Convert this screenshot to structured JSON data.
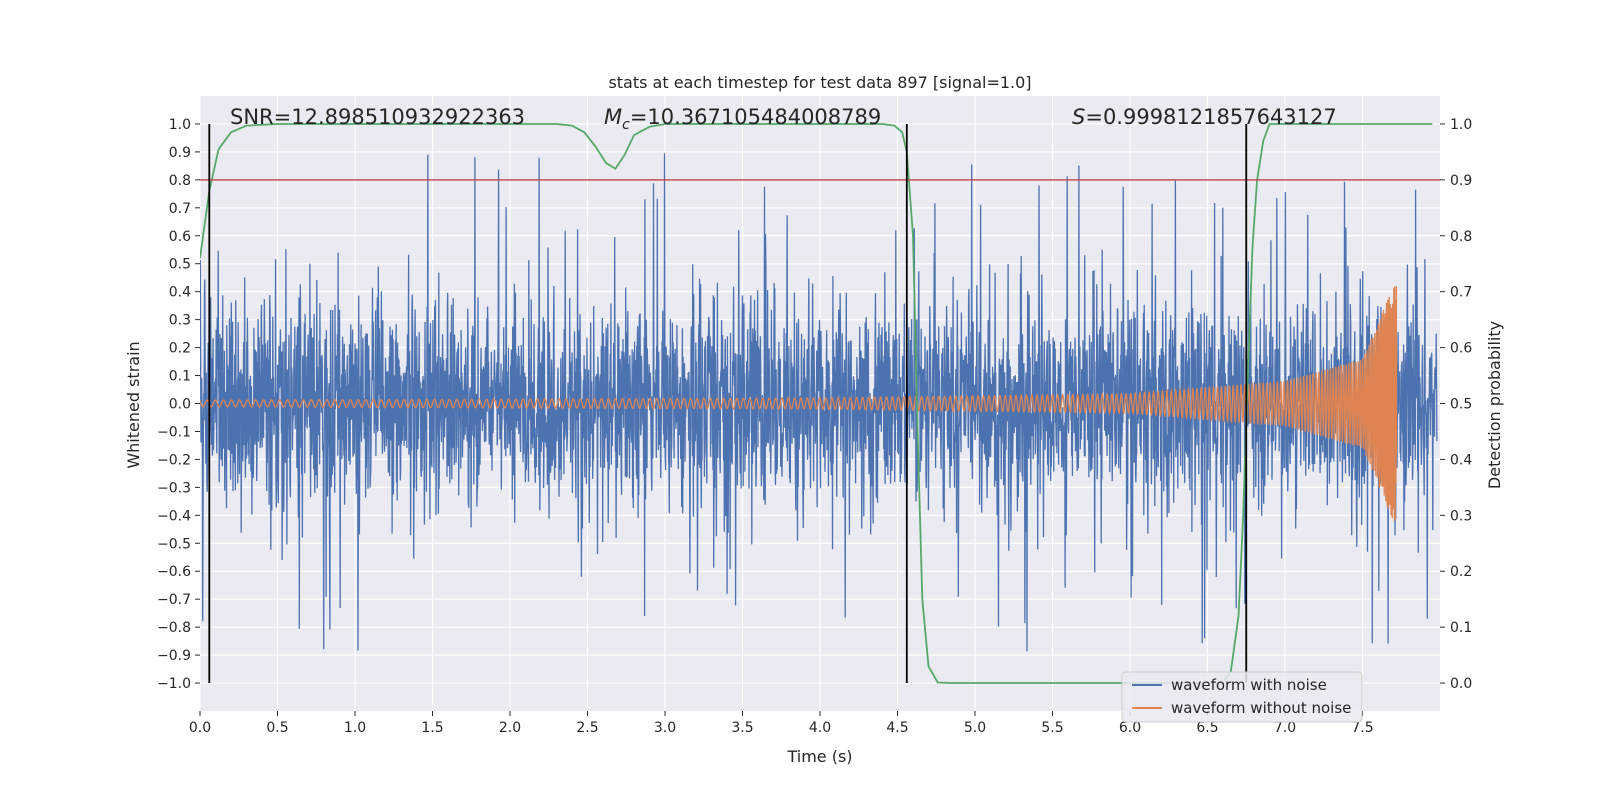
{
  "chart_data": {
    "type": "line",
    "title": "stats at each timestep for test data 897 [signal=1.0]",
    "xlabel": "Time (s)",
    "ylabel": "Whitened strain",
    "y2label": "Detection probability",
    "xlim": [
      0.0,
      8.0
    ],
    "ylim": [
      -1.1,
      1.1
    ],
    "y2lim": [
      -0.05,
      1.05
    ],
    "xticks": [
      0.0,
      0.5,
      1.0,
      1.5,
      2.0,
      2.5,
      3.0,
      3.5,
      4.0,
      4.5,
      5.0,
      5.5,
      6.0,
      6.5,
      7.0,
      7.5
    ],
    "xtick_labels": [
      "0.0",
      "0.5",
      "1.0",
      "1.5",
      "2.0",
      "2.5",
      "3.0",
      "3.5",
      "4.0",
      "4.5",
      "5.0",
      "5.5",
      "6.0",
      "6.5",
      "7.0",
      "7.5"
    ],
    "yticks": [
      -1.0,
      -0.9,
      -0.8,
      -0.7,
      -0.6,
      -0.5,
      -0.4,
      -0.3,
      -0.2,
      -0.1,
      0.0,
      0.1,
      0.2,
      0.3,
      0.4,
      0.5,
      0.6,
      0.7,
      0.8,
      0.9,
      1.0
    ],
    "ytick_labels": [
      "−1.0",
      "−0.9",
      "−0.8",
      "−0.7",
      "−0.6",
      "−0.5",
      "−0.4",
      "−0.3",
      "−0.2",
      "−0.1",
      "0.0",
      "0.1",
      "0.2",
      "0.3",
      "0.4",
      "0.5",
      "0.6",
      "0.7",
      "0.8",
      "0.9",
      "1.0"
    ],
    "y2ticks": [
      0.0,
      0.1,
      0.2,
      0.3,
      0.4,
      0.5,
      0.6,
      0.7,
      0.8,
      0.9,
      1.0
    ],
    "y2tick_labels": [
      "0.0",
      "0.1",
      "0.2",
      "0.3",
      "0.4",
      "0.5",
      "0.6",
      "0.7",
      "0.8",
      "0.9",
      "1.0"
    ],
    "annotations": {
      "snr_label": "SNR=12.898510932922363",
      "mc_symbol": "M",
      "mc_subscript": "c",
      "mc_value": "=10.367105484008789",
      "s_symbol": "S",
      "s_value": "=0.9998121857643127"
    },
    "series": [
      {
        "name": "waveform with noise",
        "color": "#4c72b0",
        "description": "whitened noisy strain, roughly within ±0.45 with spikes up to ±0.9",
        "t_range": [
          0.0,
          7.98
        ],
        "typical_amplitude": 0.45,
        "peak_amplitude": 0.9
      },
      {
        "name": "waveform without noise",
        "color": "#dd8452",
        "description": "clean inspiral chirp, amplitude growing until merger",
        "t_range": [
          0.0,
          7.72
        ],
        "merger_time": 7.72,
        "amplitude_points": [
          [
            0.0,
            0.012
          ],
          [
            4.0,
            0.02
          ],
          [
            6.0,
            0.035
          ],
          [
            7.0,
            0.08
          ],
          [
            7.5,
            0.16
          ],
          [
            7.7,
            0.42
          ]
        ]
      },
      {
        "name": "detection probability",
        "color": "#55a868",
        "axis": "right",
        "points": [
          [
            0.0,
            0.76
          ],
          [
            0.06,
            0.88
          ],
          [
            0.12,
            0.955
          ],
          [
            0.2,
            0.985
          ],
          [
            0.3,
            0.997
          ],
          [
            0.5,
            1.0
          ],
          [
            2.3,
            1.0
          ],
          [
            2.4,
            0.997
          ],
          [
            2.48,
            0.985
          ],
          [
            2.55,
            0.96
          ],
          [
            2.62,
            0.93
          ],
          [
            2.68,
            0.92
          ],
          [
            2.74,
            0.945
          ],
          [
            2.8,
            0.98
          ],
          [
            2.9,
            0.995
          ],
          [
            3.0,
            1.0
          ],
          [
            4.4,
            1.0
          ],
          [
            4.48,
            0.997
          ],
          [
            4.53,
            0.985
          ],
          [
            4.56,
            0.95
          ],
          [
            4.6,
            0.8
          ],
          [
            4.63,
            0.45
          ],
          [
            4.66,
            0.15
          ],
          [
            4.7,
            0.03
          ],
          [
            4.76,
            0.001
          ],
          [
            4.85,
            0.0
          ],
          [
            6.4,
            0.0
          ],
          [
            6.6,
            0.001
          ],
          [
            6.65,
            0.02
          ],
          [
            6.7,
            0.12
          ],
          [
            6.73,
            0.3
          ],
          [
            6.76,
            0.55
          ],
          [
            6.79,
            0.78
          ],
          [
            6.82,
            0.9
          ],
          [
            6.86,
            0.97
          ],
          [
            6.9,
            1.0
          ],
          [
            7.95,
            1.0
          ]
        ]
      }
    ],
    "threshold": {
      "value": 0.9,
      "axis": "right",
      "color": "#c44e52"
    },
    "vertical_markers": [
      0.06,
      4.56,
      6.75
    ],
    "vertical_marker_color": "#000000",
    "legend": {
      "location": "lower-right",
      "entries": [
        "waveform with noise",
        "waveform without noise"
      ],
      "colors": [
        "#4c72b0",
        "#dd8452"
      ]
    },
    "style": {
      "plot_background": "#eaeaf2",
      "grid_color": "#ffffff",
      "grid": true
    }
  }
}
